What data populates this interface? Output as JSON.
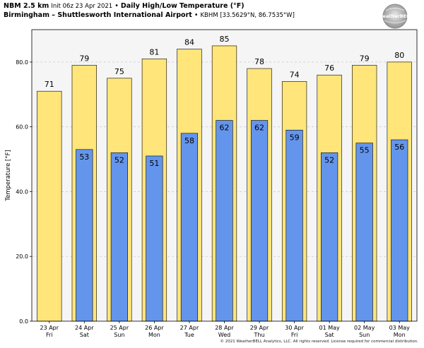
{
  "header": {
    "model": "NBM 2.5 km",
    "init": "Init 06z 23 Apr 2021",
    "product": "Daily High/Low Temperature (°F)",
    "location": "Birmingham – Shuttlesworth International Airport",
    "station": "KBHM [33.5629°N, 86.7535°W]"
  },
  "logo_text": "WeatherBELL",
  "copyright": "© 2021 WeatherBELL Analytics, LLC. All rights reserved. License required for commercial distribution.",
  "colors": {
    "high": "#ffe57a",
    "low": "#6495ed",
    "plot_bg": "#f5f5f5",
    "grid": "#cccccc"
  },
  "chart_data": {
    "type": "bar",
    "title": "Daily High/Low Temperature (°F)",
    "ylabel": "Temperature [°F]",
    "ylim": [
      0,
      90
    ],
    "yticks": [
      "0.0",
      "20.0",
      "40.0",
      "60.0",
      "80.0"
    ],
    "grid": true,
    "categories": [
      {
        "date": "23 Apr",
        "day": "Fri"
      },
      {
        "date": "24 Apr",
        "day": "Sat"
      },
      {
        "date": "25 Apr",
        "day": "Sun"
      },
      {
        "date": "26 Apr",
        "day": "Mon"
      },
      {
        "date": "27 Apr",
        "day": "Tue"
      },
      {
        "date": "28 Apr",
        "day": "Wed"
      },
      {
        "date": "29 Apr",
        "day": "Thu"
      },
      {
        "date": "30 Apr",
        "day": "Fri"
      },
      {
        "date": "01 May",
        "day": "Sat"
      },
      {
        "date": "02 May",
        "day": "Sun"
      },
      {
        "date": "03 May",
        "day": "Mon"
      }
    ],
    "series": [
      {
        "values": [
          71,
          79,
          75,
          81,
          84,
          85,
          78,
          74,
          76,
          79,
          80
        ]
      },
      {
        "values": [
          null,
          53,
          52,
          51,
          58,
          62,
          62,
          59,
          52,
          55,
          56
        ]
      }
    ]
  }
}
